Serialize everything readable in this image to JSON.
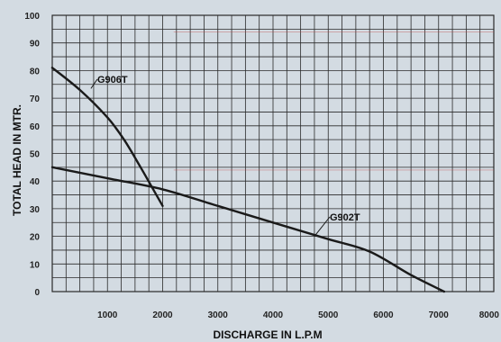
{
  "chart_data": {
    "type": "line",
    "title": "",
    "xlabel": "DISCHARGE IN L.P.M",
    "ylabel": "TOTAL HEAD IN MTR.",
    "xlim": [
      0,
      8000
    ],
    "ylim": [
      0,
      100
    ],
    "x_ticks": [
      "1000",
      "2000",
      "3000",
      "4000",
      "5000",
      "6000",
      "7000",
      "8000"
    ],
    "y_ticks": [
      "0",
      "10",
      "20",
      "30",
      "40",
      "50",
      "60",
      "70",
      "80",
      "90",
      "100"
    ],
    "grid": true,
    "grid_minor_x_step": 250,
    "grid_minor_y_step": 5,
    "series": [
      {
        "name": "G906T",
        "color": "#1a1a1a",
        "x": [
          0,
          500,
          1000,
          1300,
          1600,
          1800,
          2000
        ],
        "y": [
          81,
          73,
          63,
          55,
          45,
          38,
          31
        ]
      },
      {
        "name": "G902T",
        "color": "#1a1a1a",
        "x": [
          0,
          1000,
          2000,
          3000,
          4000,
          5000,
          5750,
          6500,
          7100
        ],
        "y": [
          45,
          41,
          37,
          31,
          25,
          19,
          14.5,
          6,
          0
        ]
      }
    ],
    "colors": {
      "background": "#d3dbe2",
      "plot_background": "#d3dbe2",
      "grid": "#2a2a2a",
      "curve": "#1a1a1a",
      "accent_line": "#c23a3a"
    }
  }
}
